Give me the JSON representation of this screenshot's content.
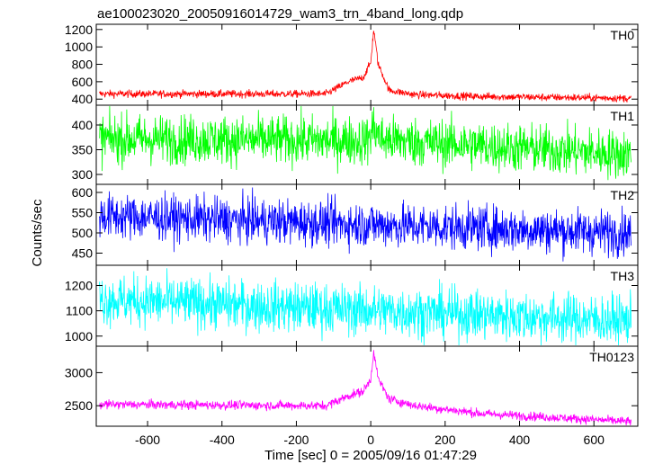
{
  "chart_data": {
    "type": "line",
    "title": "ae100023020_20050916014729_wam3_trn_4band_long.qdp",
    "xlabel": "Time [sec] 0 = 2005/09/16 01:47:29",
    "ylabel": "Counts/sec",
    "xlim": [
      -738,
      718
    ],
    "xticks": [
      -600,
      -400,
      -200,
      0,
      200,
      400,
      600
    ],
    "grid": false,
    "panels": [
      {
        "name": "TH0",
        "color": "#ff0000",
        "ylim": [
          330,
          1260
        ],
        "yticks": [
          400,
          600,
          800,
          1000,
          1200
        ],
        "baseline_start": 460,
        "baseline_end": 410,
        "noise": 22,
        "profile": [
          [
            -730,
            460
          ],
          [
            -120,
            460
          ],
          [
            -60,
            600
          ],
          [
            -20,
            650
          ],
          [
            0,
            820
          ],
          [
            8,
            1200
          ],
          [
            20,
            800
          ],
          [
            50,
            500
          ],
          [
            120,
            450
          ],
          [
            300,
            430
          ],
          [
            700,
            410
          ]
        ]
      },
      {
        "name": "TH1",
        "color": "#00ff00",
        "ylim": [
          280,
          440
        ],
        "yticks": [
          300,
          350,
          400
        ],
        "baseline_start": 372,
        "baseline_end": 340,
        "noise": 25,
        "profile": [
          [
            -730,
            372
          ],
          [
            -10,
            368
          ],
          [
            8,
            395
          ],
          [
            30,
            370
          ],
          [
            700,
            340
          ]
        ]
      },
      {
        "name": "TH2",
        "color": "#0000ff",
        "ylim": [
          420,
          620
        ],
        "yticks": [
          450,
          500,
          550,
          600
        ],
        "baseline_start": 542,
        "baseline_end": 500,
        "noise": 28,
        "profile": [
          [
            -730,
            542
          ],
          [
            700,
            500
          ]
        ]
      },
      {
        "name": "TH3",
        "color": "#00ffff",
        "ylim": [
          960,
          1280
        ],
        "yticks": [
          1000,
          1100,
          1200
        ],
        "baseline_start": 1145,
        "baseline_end": 1060,
        "noise": 50,
        "profile": [
          [
            -730,
            1145
          ],
          [
            700,
            1060
          ]
        ]
      },
      {
        "name": "TH0123",
        "color": "#ff00ff",
        "ylim": [
          2190,
          3400
        ],
        "yticks": [
          2500,
          3000
        ],
        "baseline_start": 2520,
        "baseline_end": 2260,
        "noise": 35,
        "profile": [
          [
            -730,
            2520
          ],
          [
            -120,
            2500
          ],
          [
            -60,
            2650
          ],
          [
            -20,
            2720
          ],
          [
            0,
            2900
          ],
          [
            8,
            3330
          ],
          [
            20,
            2900
          ],
          [
            50,
            2600
          ],
          [
            120,
            2500
          ],
          [
            300,
            2380
          ],
          [
            700,
            2260
          ]
        ]
      }
    ]
  }
}
